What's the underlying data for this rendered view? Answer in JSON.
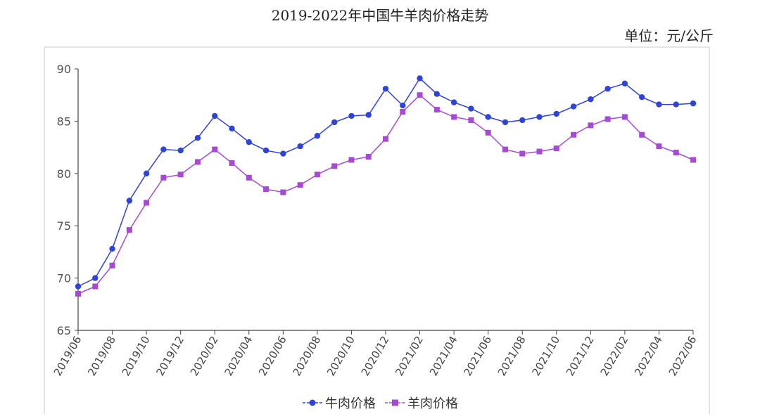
{
  "page": {
    "title": "2019-2022年中国牛羊肉价格走势",
    "unit": "单位：元/公斤"
  },
  "colors": {
    "beef": "#2f43d6",
    "lamb": "#a64ad3",
    "axis": "#444444",
    "frame": "#c8c8c8"
  },
  "chart_data": {
    "type": "line",
    "title": "2019-2022年中国牛羊肉价格走势",
    "xlabel": "",
    "ylabel": "",
    "ylim": [
      65,
      90
    ],
    "yticks": [
      65,
      70,
      75,
      80,
      85,
      90
    ],
    "grid": false,
    "legend_position": "bottom",
    "x": [
      "2019/06",
      "2019/07",
      "2019/08",
      "2019/09",
      "2019/10",
      "2019/11",
      "2019/12",
      "2020/01",
      "2020/02",
      "2020/03",
      "2020/04",
      "2020/05",
      "2020/06",
      "2020/07",
      "2020/08",
      "2020/09",
      "2020/10",
      "2020/11",
      "2020/12",
      "2021/01",
      "2021/02",
      "2021/03",
      "2021/04",
      "2021/05",
      "2021/06",
      "2021/07",
      "2021/08",
      "2021/09",
      "2021/10",
      "2021/11",
      "2021/12",
      "2022/01",
      "2022/02",
      "2022/03",
      "2022/04",
      "2022/05",
      "2022/06"
    ],
    "xtick_labels": [
      "2019/06",
      "2019/08",
      "2019/10",
      "2019/12",
      "2020/02",
      "2020/04",
      "2020/06",
      "2020/08",
      "2020/10",
      "2020/12",
      "2021/02",
      "2021/04",
      "2021/06",
      "2021/08",
      "2021/10",
      "2021/12",
      "2022/02",
      "2022/04",
      "2022/06"
    ],
    "series": [
      {
        "name": "牛肉价格",
        "marker": "circle",
        "values": [
          69.2,
          70.0,
          72.8,
          77.4,
          80.0,
          82.3,
          82.2,
          83.4,
          85.5,
          84.3,
          83.0,
          82.2,
          81.9,
          82.6,
          83.6,
          84.9,
          85.5,
          85.6,
          88.1,
          86.5,
          89.1,
          87.6,
          86.8,
          86.2,
          85.4,
          84.9,
          85.1,
          85.4,
          85.7,
          86.4,
          87.1,
          88.1,
          88.6,
          87.3,
          86.6,
          86.6,
          86.7
        ]
      },
      {
        "name": "羊肉价格",
        "marker": "square",
        "values": [
          68.5,
          69.2,
          71.2,
          74.6,
          77.2,
          79.6,
          79.9,
          81.1,
          82.3,
          81.0,
          79.6,
          78.5,
          78.2,
          78.9,
          79.9,
          80.7,
          81.3,
          81.6,
          83.3,
          85.9,
          87.5,
          86.1,
          85.4,
          85.1,
          83.9,
          82.3,
          81.9,
          82.1,
          82.4,
          83.7,
          84.6,
          85.2,
          85.4,
          83.7,
          82.6,
          82.0,
          81.3
        ]
      }
    ]
  }
}
